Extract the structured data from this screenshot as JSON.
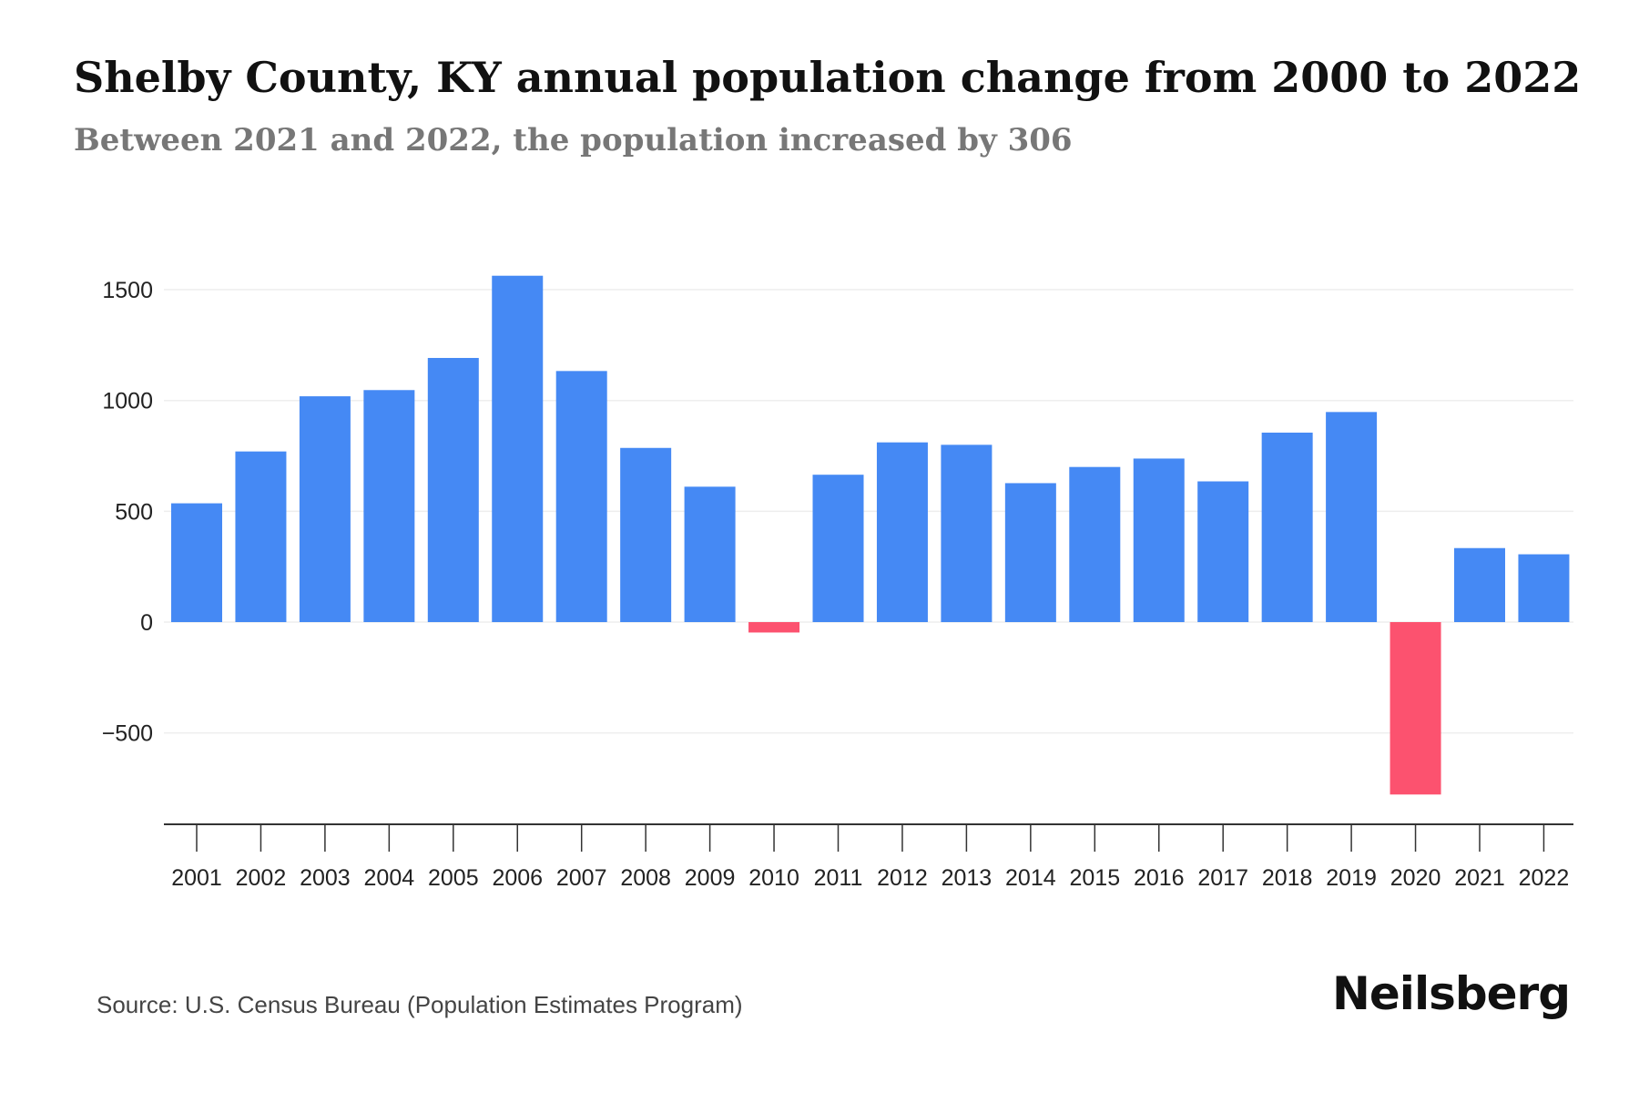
{
  "header": {
    "title": "Shelby County, KY annual population change from 2000 to 2022",
    "subtitle": "Between 2021 and 2022, the population increased by 306"
  },
  "footer": {
    "source": "Source: U.S. Census Bureau (Population Estimates Program)",
    "brand": "Neilsberg"
  },
  "colors": {
    "positive": "#4589f4",
    "negative": "#fc526f",
    "grid": "#eeeeee",
    "axis": "#333333"
  },
  "chart_data": {
    "type": "bar",
    "title": "Shelby County, KY annual population change from 2000 to 2022",
    "xlabel": "",
    "ylabel": "",
    "categories": [
      "2001",
      "2002",
      "2003",
      "2004",
      "2005",
      "2006",
      "2007",
      "2008",
      "2009",
      "2010",
      "2011",
      "2012",
      "2013",
      "2014",
      "2015",
      "2016",
      "2017",
      "2018",
      "2019",
      "2020",
      "2021",
      "2022"
    ],
    "values": [
      536,
      770,
      1019,
      1047,
      1192,
      1563,
      1133,
      786,
      611,
      -47,
      665,
      811,
      800,
      627,
      700,
      738,
      635,
      855,
      948,
      -778,
      334,
      306
    ],
    "yticks": [
      -500,
      0,
      500,
      1000,
      1500
    ],
    "ytick_labels": [
      "−500",
      "0",
      "500",
      "1000",
      "1500"
    ],
    "ylim": [
      -910,
      1600
    ],
    "grid": true
  }
}
